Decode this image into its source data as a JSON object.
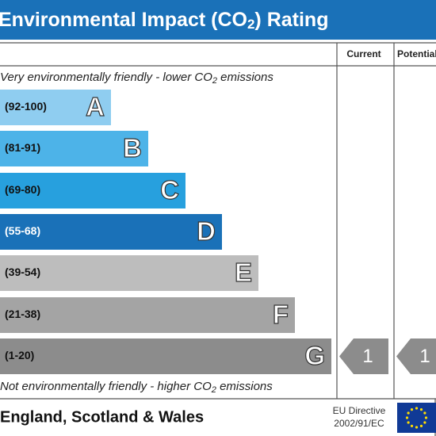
{
  "header": {
    "title": [
      "Environmental Impact (CO",
      "2",
      ") Rating"
    ]
  },
  "columns": [
    "Current",
    "Potential"
  ],
  "top_note": [
    "Very environmentally friendly - lower CO",
    "2",
    " emissions"
  ],
  "bottom_note": [
    "Not environmentally friendly - higher CO",
    "2",
    " emissions"
  ],
  "bands": [
    {
      "range": "(92-100)",
      "letter": "A",
      "color": "#8fcdf0"
    },
    {
      "range": "(81-91)",
      "letter": "B",
      "color": "#4db3e8"
    },
    {
      "range": "(69-80)",
      "letter": "C",
      "color": "#27a0de"
    },
    {
      "range": "(55-68)",
      "letter": "D",
      "color": "#1a71b8"
    },
    {
      "range": "(39-54)",
      "letter": "E",
      "color": "#bdbdbd"
    },
    {
      "range": "(21-38)",
      "letter": "F",
      "color": "#a4a4a4"
    },
    {
      "range": "(1-20)",
      "letter": "G",
      "color": "#8c8c8c"
    }
  ],
  "current": {
    "value": "1",
    "band": "G"
  },
  "potential": {
    "value": "1",
    "band": "G"
  },
  "footer": {
    "region": "England, Scotland & Wales",
    "directive": [
      "EU Directive",
      "2002/91/EC"
    ]
  }
}
